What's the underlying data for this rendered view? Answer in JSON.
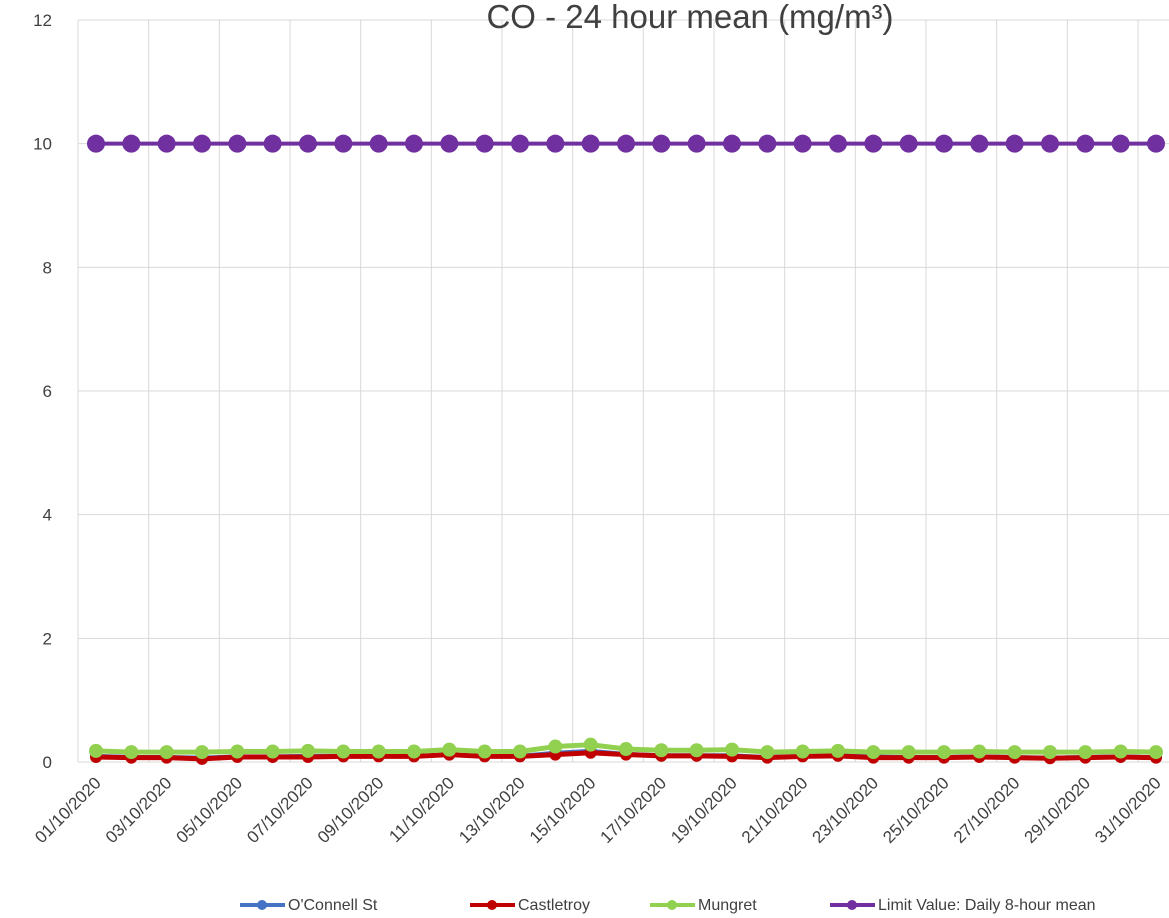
{
  "chart_data": {
    "type": "line",
    "title": "CO - 24 hour mean (mg/m³)",
    "xlabel": "",
    "ylabel": "",
    "ylim": [
      0,
      12
    ],
    "yticks": [
      "0",
      "2",
      "4",
      "6",
      "8",
      "10",
      "12"
    ],
    "grid": true,
    "legend_position": "bottom",
    "x": [
      "01/10/2020",
      "02/10/2020",
      "03/10/2020",
      "04/10/2020",
      "05/10/2020",
      "06/10/2020",
      "07/10/2020",
      "08/10/2020",
      "09/10/2020",
      "10/10/2020",
      "11/10/2020",
      "12/10/2020",
      "13/10/2020",
      "14/10/2020",
      "15/10/2020",
      "16/10/2020",
      "17/10/2020",
      "18/10/2020",
      "19/10/2020",
      "20/10/2020",
      "21/10/2020",
      "22/10/2020",
      "23/10/2020",
      "24/10/2020",
      "25/10/2020",
      "26/10/2020",
      "27/10/2020",
      "28/10/2020",
      "29/10/2020",
      "30/10/2020",
      "31/10/2020"
    ],
    "xtick_labels": [
      "01/10/2020",
      "03/10/2020",
      "05/10/2020",
      "07/10/2020",
      "09/10/2020",
      "11/10/2020",
      "13/10/2020",
      "15/10/2020",
      "17/10/2020",
      "19/10/2020",
      "21/10/2020",
      "23/10/2020",
      "25/10/2020",
      "27/10/2020",
      "29/10/2020",
      "31/10/2020"
    ],
    "series": [
      {
        "name": "O'Connell St",
        "color": "#4472C4",
        "values": [
          0.1,
          0.08,
          0.08,
          0.07,
          0.09,
          0.09,
          0.1,
          0.1,
          0.1,
          0.1,
          0.12,
          0.1,
          0.1,
          0.15,
          0.18,
          0.13,
          0.11,
          0.11,
          0.11,
          0.08,
          0.1,
          0.11,
          0.09,
          0.08,
          0.08,
          0.09,
          0.08,
          0.07,
          0.08,
          0.09,
          0.08
        ]
      },
      {
        "name": "Castletroy",
        "color": "#C00000",
        "values": [
          0.08,
          0.07,
          0.07,
          0.05,
          0.08,
          0.08,
          0.08,
          0.09,
          0.09,
          0.09,
          0.12,
          0.09,
          0.09,
          0.12,
          0.15,
          0.12,
          0.1,
          0.1,
          0.09,
          0.07,
          0.09,
          0.1,
          0.07,
          0.07,
          0.07,
          0.08,
          0.07,
          0.06,
          0.07,
          0.08,
          0.07
        ]
      },
      {
        "name": "Mungret",
        "color": "#92D050",
        "values": [
          0.18,
          0.16,
          0.16,
          0.16,
          0.17,
          0.17,
          0.18,
          0.17,
          0.17,
          0.17,
          0.2,
          0.17,
          0.17,
          0.25,
          0.28,
          0.21,
          0.19,
          0.19,
          0.2,
          0.16,
          0.17,
          0.18,
          0.16,
          0.16,
          0.16,
          0.17,
          0.16,
          0.16,
          0.16,
          0.17,
          0.16
        ]
      },
      {
        "name": "Limit Value: Daily 8-hour mean",
        "color": "#7030A0",
        "values": [
          10,
          10,
          10,
          10,
          10,
          10,
          10,
          10,
          10,
          10,
          10,
          10,
          10,
          10,
          10,
          10,
          10,
          10,
          10,
          10,
          10,
          10,
          10,
          10,
          10,
          10,
          10,
          10,
          10,
          10,
          10
        ]
      }
    ]
  }
}
